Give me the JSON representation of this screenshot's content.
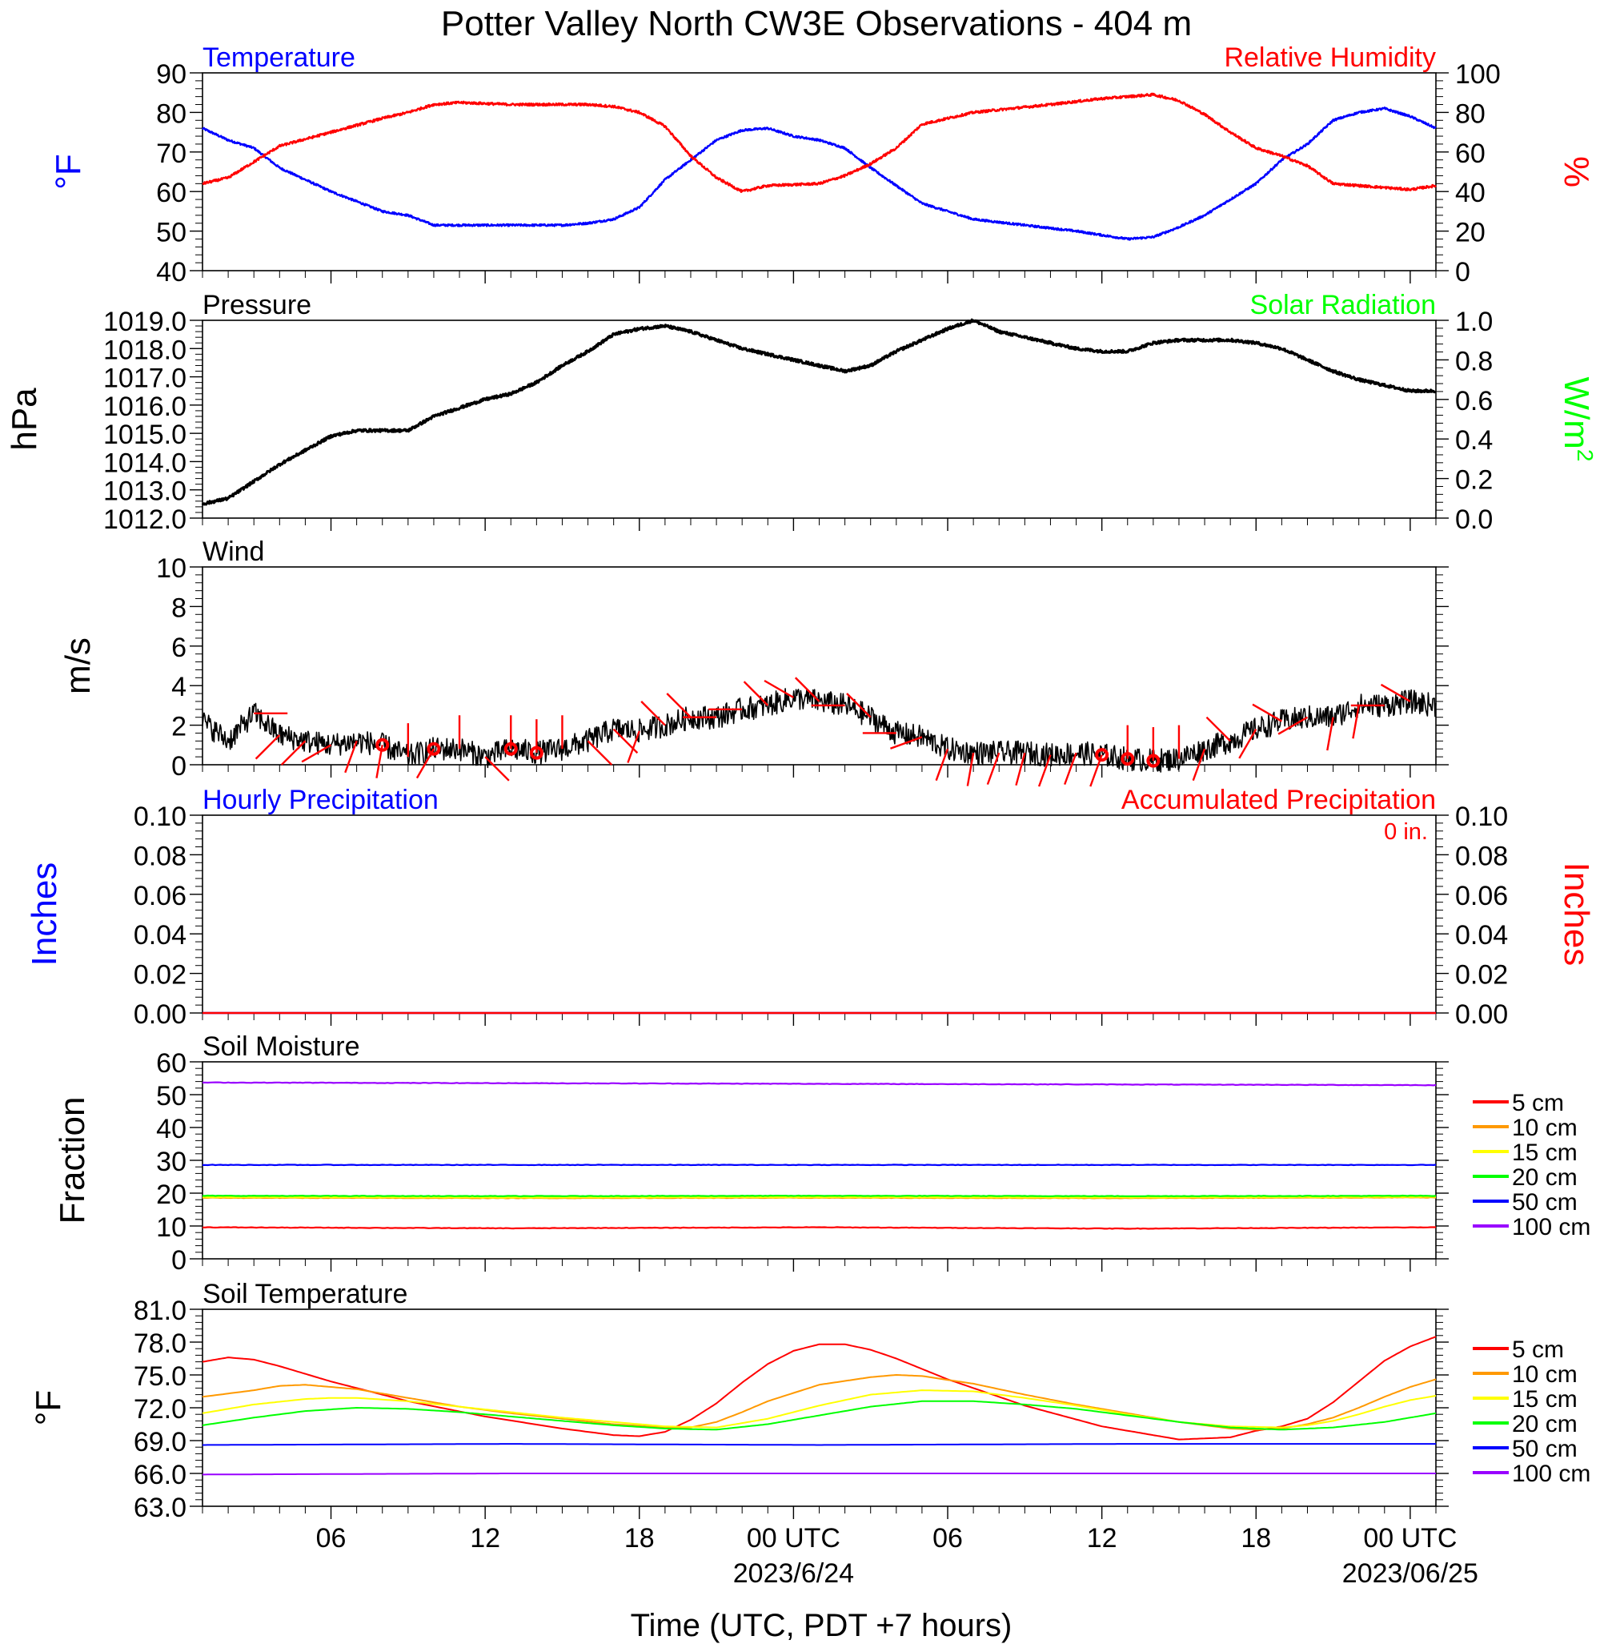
{
  "title": "Potter Valley North CW3E Observations - 404 m",
  "x_axis": {
    "title": "Time (UTC, PDT +7 hours)",
    "tick_labels": [
      "06",
      "12",
      "18",
      "00 UTC",
      "06",
      "12",
      "18",
      "00 UTC"
    ],
    "date_labels": [
      "2023/6/24",
      "2023/06/25"
    ]
  },
  "legend_labels": [
    "5 cm",
    "10 cm",
    "15 cm",
    "20 cm",
    "50 cm",
    "100 cm"
  ],
  "colors": {
    "temperature": "#0000ff",
    "humidity": "#ff0000",
    "pressure": "#000000",
    "solar": "#00ff00",
    "wind": "#000000",
    "wind_barb": "#ff0000",
    "precip_hourly": "#0000ff",
    "precip_accum": "#ff0000",
    "depth_colors": [
      "#ff0000",
      "#ff9900",
      "#ffff00",
      "#00ff00",
      "#0000ff",
      "#9900ff"
    ]
  },
  "panels": {
    "temp_rh": {
      "left_title": "Temperature",
      "right_title": "Relative Humidity",
      "left_unit": "°F",
      "right_unit": "%",
      "left_ticks": [
        "90",
        "80",
        "70",
        "60",
        "50",
        "40"
      ],
      "right_ticks": [
        "100",
        "80",
        "60",
        "40",
        "20",
        "0"
      ]
    },
    "pressure": {
      "left_title": "Pressure",
      "right_title": "Solar Radiation",
      "left_unit": "hPa",
      "right_unit": "W/m",
      "right_unit_sup": "2",
      "left_ticks": [
        "1019.0",
        "1018.0",
        "1017.0",
        "1016.0",
        "1015.0",
        "1014.0",
        "1013.0",
        "1012.0"
      ],
      "right_ticks": [
        "1.0",
        "0.8",
        "0.6",
        "0.4",
        "0.2",
        "0.0"
      ]
    },
    "wind": {
      "left_title": "Wind",
      "left_unit": "m/s",
      "left_ticks": [
        "10",
        "8",
        "6",
        "4",
        "2",
        "0"
      ]
    },
    "precip": {
      "left_title": "Hourly Precipitation",
      "right_title": "Accumulated Precipitation",
      "total_label": "0 in.",
      "left_unit": "Inches",
      "right_unit": "Inches",
      "left_ticks": [
        "0.10",
        "0.08",
        "0.06",
        "0.04",
        "0.02",
        "0.00"
      ],
      "right_ticks": [
        "0.10",
        "0.08",
        "0.06",
        "0.04",
        "0.02",
        "0.00"
      ]
    },
    "soil_moisture": {
      "left_title": "Soil Moisture",
      "left_unit": "Fraction",
      "left_ticks": [
        "60",
        "50",
        "40",
        "30",
        "20",
        "10",
        "0"
      ]
    },
    "soil_temp": {
      "left_title": "Soil Temperature",
      "left_unit": "°F",
      "left_ticks": [
        "81.0",
        "78.0",
        "75.0",
        "72.0",
        "69.0",
        "66.0",
        "63.0"
      ]
    }
  },
  "chart_data": [
    {
      "type": "line",
      "title": "Temperature / Relative Humidity",
      "x_unit": "hours since 2023-06-23 01 UTC",
      "xlim": [
        0,
        48
      ],
      "ylim": [
        40,
        90
      ],
      "y2lim": [
        0,
        100
      ],
      "series": [
        {
          "name": "Temperature",
          "axis": "left",
          "x": [
            0,
            1,
            2,
            3,
            5,
            7,
            8,
            9,
            11,
            14,
            15,
            16,
            17,
            18,
            19,
            20,
            21,
            22,
            23,
            24,
            25,
            26,
            28,
            30,
            34,
            36,
            37,
            38,
            39,
            41,
            42,
            43,
            44,
            45,
            46,
            47,
            48
          ],
          "y": [
            76,
            73,
            71,
            66,
            60,
            55,
            54,
            51.5,
            51.5,
            51.5,
            52,
            53,
            56,
            63,
            68,
            73,
            75.5,
            76,
            74,
            73,
            71,
            66,
            57,
            53,
            50,
            48,
            48.5,
            51,
            54,
            62,
            68,
            72,
            78,
            80,
            81,
            79,
            76
          ]
        },
        {
          "name": "Relative Humidity",
          "axis": "right",
          "x": [
            0,
            1,
            2,
            3,
            5,
            7,
            8,
            9,
            10,
            12,
            15,
            16,
            17,
            18,
            19,
            20,
            21,
            22,
            24,
            25,
            26,
            27,
            28,
            30,
            33,
            35,
            36,
            37,
            38,
            39,
            40,
            41,
            42,
            43,
            44,
            45,
            46,
            47,
            48
          ],
          "y": [
            44,
            47,
            55,
            63,
            70,
            77,
            80,
            84,
            85,
            84,
            84,
            83,
            80,
            73,
            58,
            47,
            40,
            43,
            44,
            48,
            54,
            62,
            74,
            80,
            84,
            87,
            88,
            89,
            86,
            79,
            70,
            62,
            58,
            53,
            44,
            43,
            42,
            41,
            43
          ]
        }
      ]
    },
    {
      "type": "line",
      "title": "Pressure",
      "x_unit": "hours since 2023-06-23 01 UTC",
      "xlim": [
        0,
        48
      ],
      "ylim": [
        1012,
        1019
      ],
      "series": [
        {
          "name": "Pressure",
          "x": [
            0,
            1,
            2,
            3,
            4,
            5,
            6,
            7,
            8,
            9,
            10,
            11,
            12,
            13,
            14,
            15,
            16,
            17,
            18,
            19,
            20,
            21,
            22,
            23,
            24,
            25,
            26,
            27,
            28,
            29,
            30,
            31,
            32,
            33,
            34,
            35,
            36,
            37,
            38,
            39,
            40,
            41,
            42,
            43,
            44,
            45,
            46,
            47,
            48
          ],
          "y": [
            1012.5,
            1012.7,
            1013.3,
            1013.9,
            1014.4,
            1014.9,
            1015.1,
            1015.1,
            1015.1,
            1015.6,
            1015.9,
            1016.2,
            1016.4,
            1016.8,
            1017.4,
            1017.9,
            1018.5,
            1018.7,
            1018.8,
            1018.6,
            1018.3,
            1018.0,
            1017.8,
            1017.6,
            1017.4,
            1017.2,
            1017.4,
            1017.9,
            1018.3,
            1018.7,
            1019.0,
            1018.6,
            1018.4,
            1018.2,
            1018.0,
            1017.9,
            1017.9,
            1018.2,
            1018.3,
            1018.3,
            1018.3,
            1018.2,
            1018.0,
            1017.6,
            1017.2,
            1016.9,
            1016.7,
            1016.5,
            1016.5
          ]
        }
      ]
    },
    {
      "type": "line",
      "title": "Wind",
      "x_unit": "hours since 2023-06-23 01 UTC",
      "xlim": [
        0,
        48
      ],
      "ylim": [
        0,
        10
      ],
      "series": [
        {
          "name": "Wind speed",
          "x": [
            0,
            1,
            2,
            3,
            4,
            5,
            6,
            7,
            8,
            9,
            10,
            11,
            12,
            13,
            14,
            15,
            16,
            17,
            18,
            19,
            20,
            21,
            22,
            23,
            24,
            25,
            26,
            27,
            28,
            29,
            30,
            31,
            32,
            33,
            34,
            35,
            36,
            37,
            38,
            39,
            40,
            41,
            42,
            43,
            44,
            45,
            46,
            47,
            48
          ],
          "y": [
            2.2,
            1.2,
            2.6,
            1.5,
            1.2,
            1.0,
            1.2,
            1.0,
            0.4,
            0.8,
            0.8,
            0.4,
            0.8,
            0.6,
            0.8,
            1.2,
            1.8,
            1.7,
            2.0,
            2.4,
            2.4,
            2.8,
            3.0,
            3.4,
            3.2,
            3.0,
            2.4,
            1.6,
            1.4,
            0.8,
            0.6,
            0.6,
            0.6,
            0.5,
            0.6,
            0.5,
            0.3,
            0.2,
            0.3,
            0.8,
            1.2,
            1.8,
            2.2,
            2.4,
            2.4,
            3.0,
            3.0,
            3.2,
            3.0
          ]
        }
      ],
      "barbs": {
        "x": [
          2,
          3,
          4,
          5,
          6,
          7,
          8,
          9,
          10,
          11,
          12,
          13,
          14,
          15,
          16,
          17,
          18,
          19,
          20,
          21,
          22,
          23,
          24,
          25,
          26,
          27,
          28,
          29,
          30,
          31,
          32,
          33,
          34,
          35,
          36,
          37,
          38,
          39,
          40,
          41,
          42,
          43,
          44,
          45,
          46,
          47
        ],
        "direction_deg": [
          90,
          225,
          225,
          240,
          200,
          190,
          0,
          210,
          0,
          135,
          0,
          0,
          0,
          135,
          135,
          200,
          315,
          315,
          270,
          270,
          315,
          300,
          315,
          270,
          315,
          270,
          250,
          200,
          190,
          200,
          195,
          200,
          200,
          200,
          0,
          0,
          0,
          200,
          315,
          210,
          300,
          240,
          190,
          190,
          270,
          300
        ],
        "calm_hours": [
          7,
          9,
          12,
          13,
          35,
          36,
          37
        ]
      }
    },
    {
      "type": "line",
      "title": "Hourly Precipitation / Accumulated Precipitation",
      "x_unit": "hours since 2023-06-23 01 UTC",
      "xlim": [
        0,
        48
      ],
      "ylim": [
        0,
        0.1
      ],
      "series": [
        {
          "name": "Hourly Precipitation",
          "x": [
            0,
            48
          ],
          "y": [
            0,
            0
          ]
        },
        {
          "name": "Accumulated Precipitation",
          "x": [
            0,
            48
          ],
          "y": [
            0,
            0
          ]
        }
      ]
    },
    {
      "type": "line",
      "title": "Soil Moisture",
      "x_unit": "hours since 2023-06-23 01 UTC",
      "xlim": [
        0,
        48
      ],
      "ylim": [
        0,
        60
      ],
      "series": [
        {
          "name": "5 cm",
          "x": [
            0,
            12,
            24,
            36,
            48
          ],
          "y": [
            9.6,
            9.3,
            9.6,
            9.2,
            9.6
          ]
        },
        {
          "name": "10 cm",
          "x": [
            0,
            12,
            24,
            36,
            48
          ],
          "y": [
            18.6,
            18.5,
            18.6,
            18.5,
            18.7
          ]
        },
        {
          "name": "15 cm",
          "x": [
            0,
            12,
            24,
            36,
            48
          ],
          "y": [
            18.8,
            18.7,
            18.8,
            18.7,
            18.9
          ]
        },
        {
          "name": "20 cm",
          "x": [
            0,
            12,
            24,
            36,
            48
          ],
          "y": [
            19.2,
            19.1,
            19.2,
            19.1,
            19.2
          ]
        },
        {
          "name": "50 cm",
          "x": [
            0,
            12,
            24,
            36,
            48
          ],
          "y": [
            28.6,
            28.6,
            28.6,
            28.6,
            28.6
          ]
        },
        {
          "name": "100 cm",
          "x": [
            0,
            12,
            24,
            36,
            48
          ],
          "y": [
            53.7,
            53.5,
            53.3,
            53.1,
            52.9
          ]
        }
      ]
    },
    {
      "type": "line",
      "title": "Soil Temperature",
      "x_unit": "hours since 2023-06-23 01 UTC",
      "xlim": [
        0,
        48
      ],
      "ylim": [
        63,
        81
      ],
      "series": [
        {
          "name": "5 cm",
          "x": [
            0,
            1,
            2,
            3,
            5,
            8,
            11,
            14,
            16,
            17,
            18,
            19,
            20,
            21,
            22,
            23,
            24,
            25,
            26,
            27,
            29,
            32,
            35,
            38,
            40,
            41,
            42,
            43,
            44,
            45,
            46,
            47,
            48
          ],
          "y": [
            76.2,
            76.6,
            76.4,
            75.8,
            74.4,
            72.6,
            71.2,
            70.1,
            69.5,
            69.4,
            69.8,
            70.9,
            72.4,
            74.3,
            76.0,
            77.2,
            77.8,
            77.8,
            77.3,
            76.5,
            74.6,
            72.2,
            70.3,
            69.1,
            69.3,
            69.9,
            70.3,
            71.0,
            72.5,
            74.4,
            76.3,
            77.6,
            78.5
          ]
        },
        {
          "name": "10 cm",
          "x": [
            0,
            2,
            3,
            4,
            6,
            8,
            10,
            12,
            14,
            16,
            18,
            19,
            20,
            21,
            22,
            24,
            26,
            27,
            28,
            30,
            32,
            34,
            36,
            38,
            40,
            41,
            42,
            43,
            44,
            45,
            46,
            47,
            48
          ],
          "y": [
            73.0,
            73.6,
            74.0,
            74.1,
            73.7,
            72.9,
            72.1,
            71.5,
            71.0,
            70.5,
            70.2,
            70.2,
            70.7,
            71.6,
            72.6,
            74.1,
            74.8,
            75.0,
            74.9,
            74.2,
            73.2,
            72.3,
            71.5,
            70.7,
            70.1,
            70.0,
            70.1,
            70.5,
            71.1,
            72.0,
            73.0,
            73.9,
            74.6
          ]
        },
        {
          "name": "15 cm",
          "x": [
            0,
            2,
            4,
            5,
            6,
            8,
            10,
            12,
            14,
            16,
            18,
            20,
            22,
            24,
            26,
            28,
            30,
            32,
            34,
            36,
            38,
            40,
            42,
            43,
            44,
            45,
            46,
            47,
            48
          ],
          "y": [
            71.5,
            72.3,
            72.8,
            72.9,
            72.9,
            72.6,
            72.1,
            71.6,
            71.1,
            70.7,
            70.3,
            70.2,
            71.0,
            72.2,
            73.2,
            73.6,
            73.5,
            72.9,
            72.2,
            71.4,
            70.7,
            70.3,
            70.2,
            70.4,
            70.8,
            71.4,
            72.1,
            72.7,
            73.1
          ]
        },
        {
          "name": "20 cm",
          "x": [
            0,
            2,
            4,
            6,
            8,
            10,
            12,
            14,
            16,
            18,
            20,
            22,
            24,
            26,
            28,
            30,
            32,
            34,
            36,
            38,
            40,
            42,
            44,
            46,
            48
          ],
          "y": [
            70.4,
            71.1,
            71.7,
            72.0,
            71.9,
            71.6,
            71.2,
            70.8,
            70.4,
            70.1,
            70.0,
            70.5,
            71.3,
            72.1,
            72.6,
            72.6,
            72.3,
            71.9,
            71.3,
            70.7,
            70.2,
            70.0,
            70.2,
            70.7,
            71.5
          ]
        },
        {
          "name": "50 cm",
          "x": [
            0,
            12,
            24,
            36,
            48
          ],
          "y": [
            68.6,
            68.7,
            68.6,
            68.7,
            68.7
          ]
        },
        {
          "name": "100 cm",
          "x": [
            0,
            12,
            24,
            36,
            48
          ],
          "y": [
            65.9,
            66.0,
            66.0,
            66.0,
            66.0
          ]
        }
      ]
    }
  ]
}
